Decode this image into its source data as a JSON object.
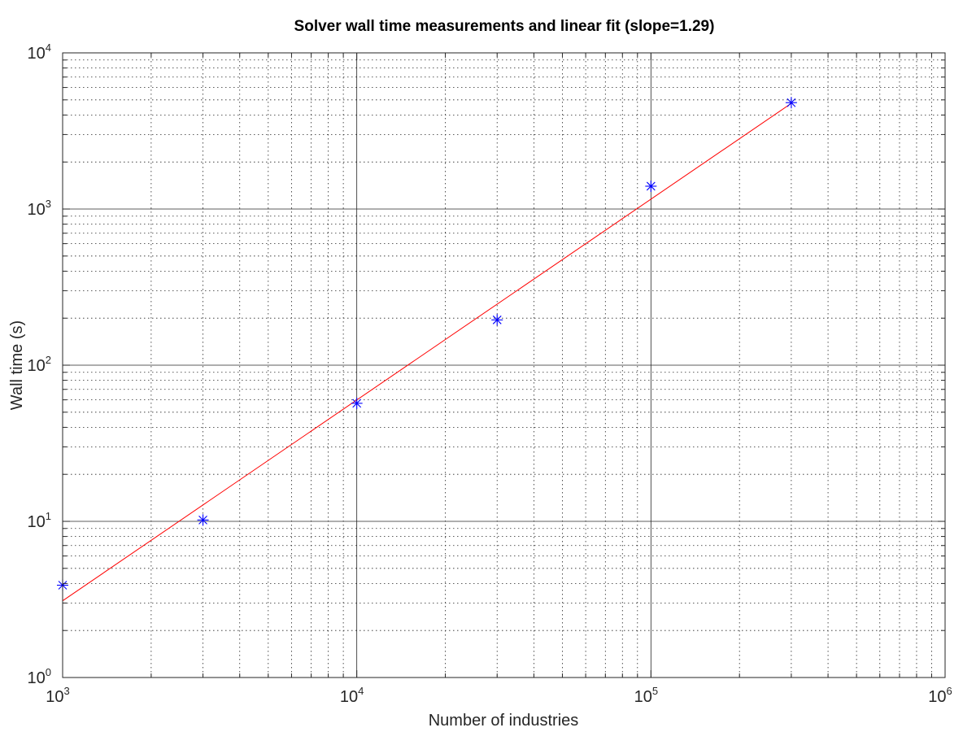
{
  "chart_data": {
    "type": "scatter",
    "title": "Solver wall time measurements and linear fit (slope=1.29)",
    "xlabel": "Number of industries",
    "ylabel": "Wall time (s)",
    "xscale": "log",
    "yscale": "log",
    "xlim": [
      1000,
      1000000
    ],
    "ylim": [
      1,
      10000
    ],
    "grid": true,
    "minor_grid": true,
    "legend": "none",
    "x_ticks": [
      {
        "base": "10",
        "exp": "3",
        "value": 1000
      },
      {
        "base": "10",
        "exp": "4",
        "value": 10000
      },
      {
        "base": "10",
        "exp": "5",
        "value": 100000
      },
      {
        "base": "10",
        "exp": "6",
        "value": 1000000
      }
    ],
    "y_ticks": [
      {
        "base": "10",
        "exp": "0",
        "value": 1
      },
      {
        "base": "10",
        "exp": "1",
        "value": 10
      },
      {
        "base": "10",
        "exp": "2",
        "value": 100
      },
      {
        "base": "10",
        "exp": "3",
        "value": 1000
      },
      {
        "base": "10",
        "exp": "4",
        "value": 10000
      }
    ],
    "series": [
      {
        "type": "scatter",
        "marker": "asterisk",
        "color": "#0000ff",
        "x": [
          1000,
          3000,
          10000,
          30000,
          100000,
          300000
        ],
        "y": [
          3.9,
          10.2,
          57,
          195,
          1400,
          4800
        ]
      },
      {
        "type": "line",
        "color": "#ff0000",
        "x": [
          1000,
          300000
        ],
        "y": [
          3.1,
          4750
        ]
      }
    ]
  }
}
